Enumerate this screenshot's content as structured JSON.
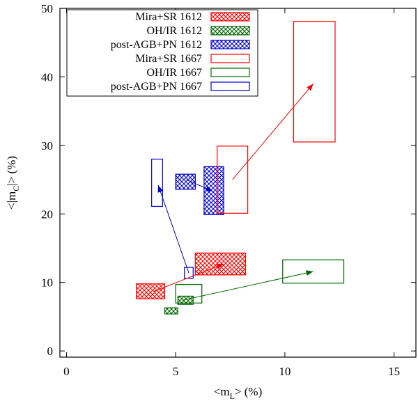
{
  "chart_data": {
    "type": "scatter",
    "title": "",
    "xlabel": "<m",
    "xlabel_sub": "L",
    "xlabel_tail": "> (%)",
    "ylabel": "<|m",
    "ylabel_sub": "C",
    "ylabel_tail": "|> (%)",
    "xlim": [
      -0.3,
      16
    ],
    "ylim": [
      -0.9,
      50
    ],
    "x_ticks": [
      0,
      5,
      10,
      15
    ],
    "y_ticks": [
      0,
      10,
      20,
      30,
      40,
      50
    ],
    "grid": false,
    "legend_position": "top-left",
    "colors": {
      "red": "#ff0000",
      "green": "#006400",
      "blue": "#0000cd",
      "axis": "#000000"
    },
    "series": [
      {
        "name": "Mira+SR 1612",
        "color": "red",
        "style": "hatched",
        "boxes": [
          {
            "x": [
              3.2,
              4.5
            ],
            "y": [
              7.6,
              9.8
            ]
          },
          {
            "x": [
              5.9,
              8.2
            ],
            "y": [
              11.1,
              14.3
            ]
          }
        ]
      },
      {
        "name": "OH/IR 1612",
        "color": "green",
        "style": "hatched",
        "boxes": [
          {
            "x": [
              4.5,
              5.1
            ],
            "y": [
              5.4,
              6.3
            ]
          },
          {
            "x": [
              5.1,
              5.8
            ],
            "y": [
              6.8,
              8.0
            ]
          }
        ]
      },
      {
        "name": "post-AGB+PN 1612",
        "color": "blue",
        "style": "hatched",
        "boxes": [
          {
            "x": [
              5.0,
              5.9
            ],
            "y": [
              23.6,
              25.8
            ]
          },
          {
            "x": [
              6.3,
              7.2
            ],
            "y": [
              19.9,
              26.9
            ]
          }
        ]
      },
      {
        "name": "Mira+SR 1667",
        "color": "red",
        "style": "open",
        "boxes": [
          {
            "x": [
              6.9,
              8.3
            ],
            "y": [
              20.1,
              29.9
            ]
          },
          {
            "x": [
              10.4,
              12.3
            ],
            "y": [
              30.5,
              48.1
            ]
          }
        ]
      },
      {
        "name": "OH/IR 1667",
        "color": "green",
        "style": "open",
        "boxes": [
          {
            "x": [
              5.0,
              6.2
            ],
            "y": [
              7.0,
              9.7
            ]
          },
          {
            "x": [
              9.9,
              12.7
            ],
            "y": [
              9.9,
              13.3
            ]
          }
        ]
      },
      {
        "name": "post-AGB+PN 1667",
        "color": "blue",
        "style": "open",
        "boxes": [
          {
            "x": [
              3.9,
              4.4
            ],
            "y": [
              21.1,
              28.0
            ]
          },
          {
            "x": [
              5.4,
              5.8
            ],
            "y": [
              10.6,
              12.2
            ]
          }
        ]
      }
    ],
    "arrows": [
      {
        "color": "red",
        "from": [
          4.0,
          8.7
        ],
        "to": [
          7.2,
          12.7
        ]
      },
      {
        "color": "green",
        "from": [
          5.3,
          7.4
        ],
        "to": [
          11.3,
          11.6
        ]
      },
      {
        "color": "blue",
        "from": [
          5.5,
          25.0
        ],
        "to": [
          6.7,
          23.3
        ]
      },
      {
        "color": "blue",
        "from": [
          5.6,
          11.4
        ],
        "to": [
          4.2,
          24.2
        ]
      },
      {
        "color": "red",
        "from": [
          7.6,
          25.0
        ],
        "to": [
          11.3,
          39.0
        ]
      }
    ]
  }
}
